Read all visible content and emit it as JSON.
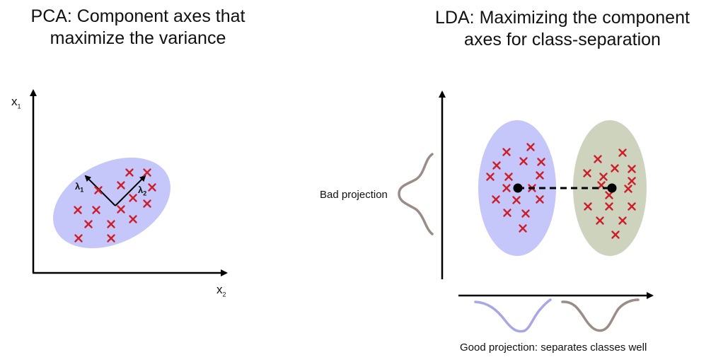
{
  "pca": {
    "title_line1": "PCA: Component axes that",
    "title_line2": "maximize the variance",
    "axis_y_label": "x",
    "axis_y_sub": "1",
    "axis_x_label": "x",
    "axis_x_sub": "2",
    "lambda1_label": "λ",
    "lambda1_sub": "1",
    "lambda2_label": "λ",
    "lambda2_sub": "2"
  },
  "lda": {
    "title_line1": "LDA: Maximizing the component",
    "title_line2": "axes for class-separation",
    "bad_projection_label": "Bad projection",
    "good_projection_label": "Good projection: separates classes well"
  },
  "colors": {
    "class1_fill": "#c5c6fa",
    "class2_fill": "#cdd3bd",
    "marker": "#cc1f2a",
    "curve_class1": "#a9a6e6",
    "curve_class2": "#9a8c86",
    "axis": "#000000"
  },
  "icons": {
    "marker": "x-marker-icon",
    "mean": "class-mean-dot-icon",
    "arrow": "arrow-head-icon"
  }
}
